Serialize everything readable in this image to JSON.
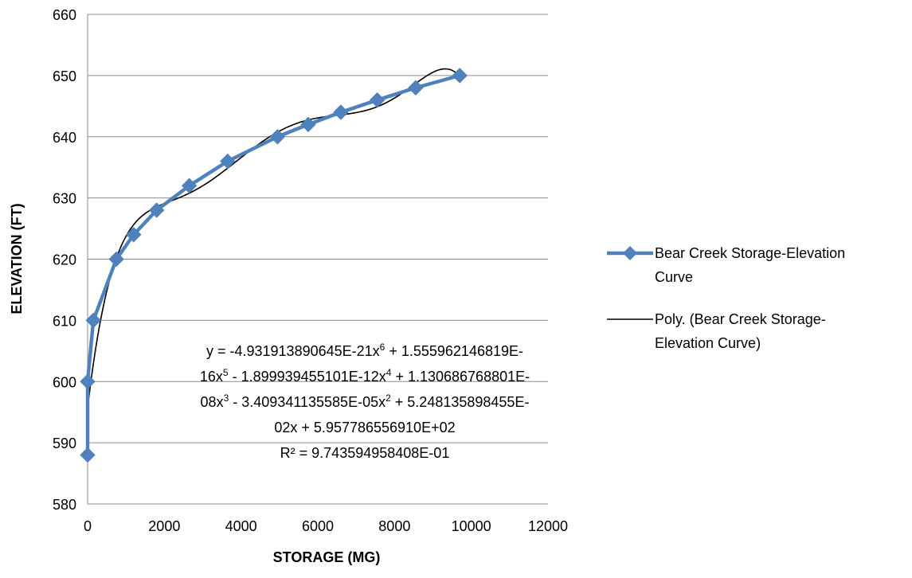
{
  "chart_data": {
    "type": "scatter",
    "title": "",
    "xlabel": "STORAGE (MG)",
    "ylabel": "ELEVATION (FT)",
    "xlim": [
      0,
      12000
    ],
    "ylim": [
      580,
      660
    ],
    "x_ticks": [
      0,
      2000,
      4000,
      6000,
      8000,
      10000,
      12000
    ],
    "y_ticks": [
      580,
      590,
      600,
      610,
      620,
      630,
      640,
      650,
      660
    ],
    "grid": "horizontal",
    "legend_position": "right",
    "series": [
      {
        "name": "Bear Creek Storage-Elevation Curve",
        "style": "line-with-diamond-markers",
        "color": "#4f81bd",
        "points": [
          {
            "x": 0,
            "y": 588
          },
          {
            "x": 0,
            "y": 600
          },
          {
            "x": 150,
            "y": 610
          },
          {
            "x": 750,
            "y": 620
          },
          {
            "x": 1200,
            "y": 624
          },
          {
            "x": 1800,
            "y": 628
          },
          {
            "x": 2650,
            "y": 632
          },
          {
            "x": 3650,
            "y": 636
          },
          {
            "x": 4950,
            "y": 640
          },
          {
            "x": 5750,
            "y": 642
          },
          {
            "x": 6600,
            "y": 644
          },
          {
            "x": 7550,
            "y": 646
          },
          {
            "x": 8550,
            "y": 648
          },
          {
            "x": 9700,
            "y": 650
          }
        ]
      },
      {
        "name": "Poly. (Bear Creek Storage-Elevation Curve)",
        "style": "trendline",
        "color": "#000000",
        "coefficients_desc": [
          -4.931913890645e-21,
          1.555962146819e-16,
          -1.899939455101e-12,
          1.130686768801e-08,
          -3.409341135585e-05,
          0.05248135898455,
          595.778655691
        ],
        "x_range": [
          0,
          9700
        ]
      }
    ],
    "legend": [
      {
        "lines": [
          "Bear Creek Storage-Elevation",
          "Curve"
        ]
      },
      {
        "lines": [
          "Poly. (Bear Creek Storage-",
          "Elevation Curve)"
        ]
      }
    ],
    "annotation": {
      "lines": [
        {
          "text": "y = -4.931913890645E-21x",
          "sup": "6",
          "tail": " + 1.555962146819E-"
        },
        {
          "text": "16x",
          "sup": "5",
          "tail": " - 1.899939455101E-12x"
        },
        {
          "text": "08x",
          "sup": "3",
          "tail": " - 3.409341135585E-05x"
        },
        {
          "text": "02x + 5.957786556910E+02",
          "sup": "",
          "tail": ""
        },
        {
          "text": "R² = 9.743594958408E-01",
          "sup": "",
          "tail": ""
        }
      ],
      "line2_sup": "4",
      "line2_tail2": " + 1.130686768801E-",
      "line3_sup2": "2",
      "line3_tail2": " + 5.248135898455E-"
    }
  }
}
